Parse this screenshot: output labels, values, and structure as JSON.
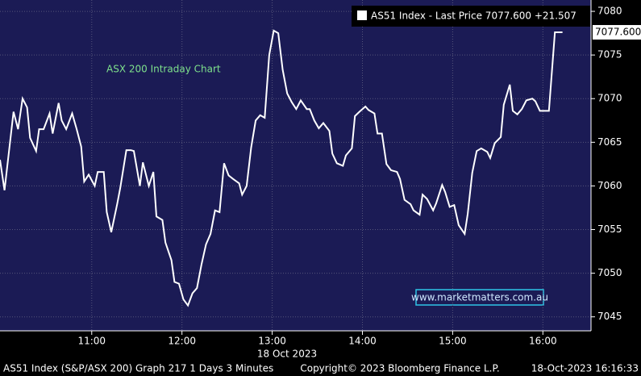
{
  "chart_data": {
    "type": "line",
    "title": "ASX 200 Intraday Chart",
    "date_label": "18 Oct 2023",
    "series": [
      {
        "name": "AS51 Index - Last Price 7077.600 +21.507",
        "color": "#ffffff",
        "x": [
          599,
          602,
          608,
          611,
          614,
          617,
          619,
          623,
          625,
          628,
          632,
          634,
          638,
          640,
          643,
          647,
          650,
          653,
          655,
          658,
          662,
          664,
          668,
          670,
          673,
          677,
          679,
          683,
          686,
          688,
          692,
          694,
          698,
          701,
          703,
          707,
          709,
          713,
          715,
          718,
          721,
          724,
          727,
          730,
          733,
          736,
          739,
          742,
          745,
          748,
          751,
          754,
          758,
          760,
          763,
          766,
          769,
          772,
          775,
          778,
          781,
          784,
          787,
          790,
          793,
          796,
          799,
          803,
          805,
          808,
          811,
          814,
          818,
          820,
          823,
          827,
          829,
          833,
          835,
          838,
          842,
          844,
          848,
          850,
          853,
          856,
          859,
          863,
          865,
          868,
          872,
          874,
          878,
          880,
          883,
          887,
          889,
          893,
          895,
          898,
          901,
          904,
          908,
          910,
          913,
          916,
          919,
          923,
          925,
          928,
          932,
          934,
          938,
          940,
          943,
          946,
          949,
          953,
          955,
          958,
          961,
          964,
          968,
          973
        ],
        "values": [
          7063,
          7059.5,
          7068.5,
          7066.5,
          7070,
          7069,
          7065.5,
          7064,
          7066.5,
          7066.5,
          7068.3,
          7066,
          7069.5,
          7067.5,
          7066.5,
          7068.3,
          7066.5,
          7064.5,
          7060.5,
          7061.3,
          7060,
          7061.6,
          7061.6,
          7057,
          7054.7,
          7058,
          7059.8,
          7064.1,
          7064.1,
          7064,
          7060,
          7062.7,
          7060,
          7061.6,
          7056.5,
          7056.1,
          7053.5,
          7051.5,
          7049,
          7048.8,
          7047,
          7046.3,
          7047.7,
          7048.3,
          7051,
          7053.3,
          7054.5,
          7057.2,
          7057,
          7062.6,
          7061.2,
          7060.8,
          7060.3,
          7059,
          7060,
          7064.4,
          7067.5,
          7068.1,
          7067.8,
          7075,
          7077.8,
          7077.5,
          7073.3,
          7070.6,
          7069.6,
          7068.8,
          7069.8,
          7068.8,
          7068.8,
          7067.5,
          7066.6,
          7067.2,
          7066.3,
          7063.7,
          7062.6,
          7062.3,
          7063.5,
          7064.3,
          7068,
          7068.5,
          7069.1,
          7068.7,
          7068.3,
          7066,
          7066,
          7062.5,
          7061.8,
          7061.6,
          7060.8,
          7058.4,
          7057.9,
          7057.2,
          7056.7,
          7059,
          7058.5,
          7057.2,
          7058,
          7060.1,
          7059.3,
          7057.6,
          7057.8,
          7055.5,
          7054.5,
          7056.8,
          7061.5,
          7064,
          7064.3,
          7063.9,
          7063.2,
          7064.9,
          7065.6,
          7069.3,
          7071.6,
          7068.6,
          7068.2,
          7068.8,
          7069.8,
          7070,
          7069.7,
          7068.6,
          7068.6,
          7068.6,
          7077.6,
          7077.6
        ]
      }
    ],
    "last_price": {
      "value": 7077.6,
      "label": "7077.600"
    },
    "xlim": [
      599,
      992
    ],
    "xticks": [
      {
        "value": 660,
        "label": "11:00"
      },
      {
        "value": 720,
        "label": "12:00"
      },
      {
        "value": 780,
        "label": "13:00"
      },
      {
        "value": 840,
        "label": "14:00"
      },
      {
        "value": 900,
        "label": "15:00"
      },
      {
        "value": 960,
        "label": "16:00"
      }
    ],
    "ylim": [
      7043.4,
      7081.3
    ],
    "yticks": [
      7045,
      7050,
      7055,
      7060,
      7065,
      7070,
      7075,
      7080
    ],
    "grid": true,
    "watermark": "www.marketmatters.com.au",
    "footer": {
      "left": "AS51 Index (S&P/ASX 200) Graph 217 1 Days 3 Minutes",
      "center": "Copyright© 2023 Bloomberg Finance L.P.",
      "right": "18-Oct-2023 16:16:33"
    }
  }
}
